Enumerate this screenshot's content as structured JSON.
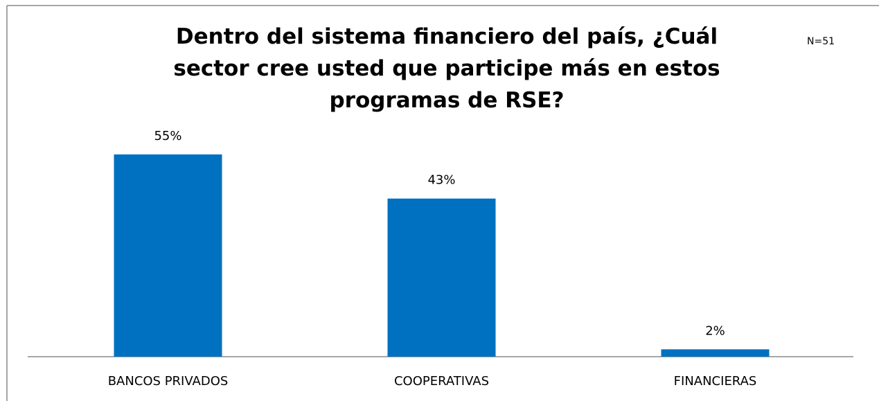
{
  "chart_data": {
    "type": "bar",
    "title": "Dentro del sistema financiero del país, ¿Cuál sector cree usted que participe más en estos programas de RSE?",
    "annotation": "N=51",
    "categories": [
      "BANCOS PRIVADOS",
      "COOPERATIVAS",
      "FINANCIERAS"
    ],
    "values": [
      55,
      43,
      2
    ],
    "value_labels": [
      "55%",
      "43%",
      "2%"
    ],
    "color": "#0070c0"
  }
}
